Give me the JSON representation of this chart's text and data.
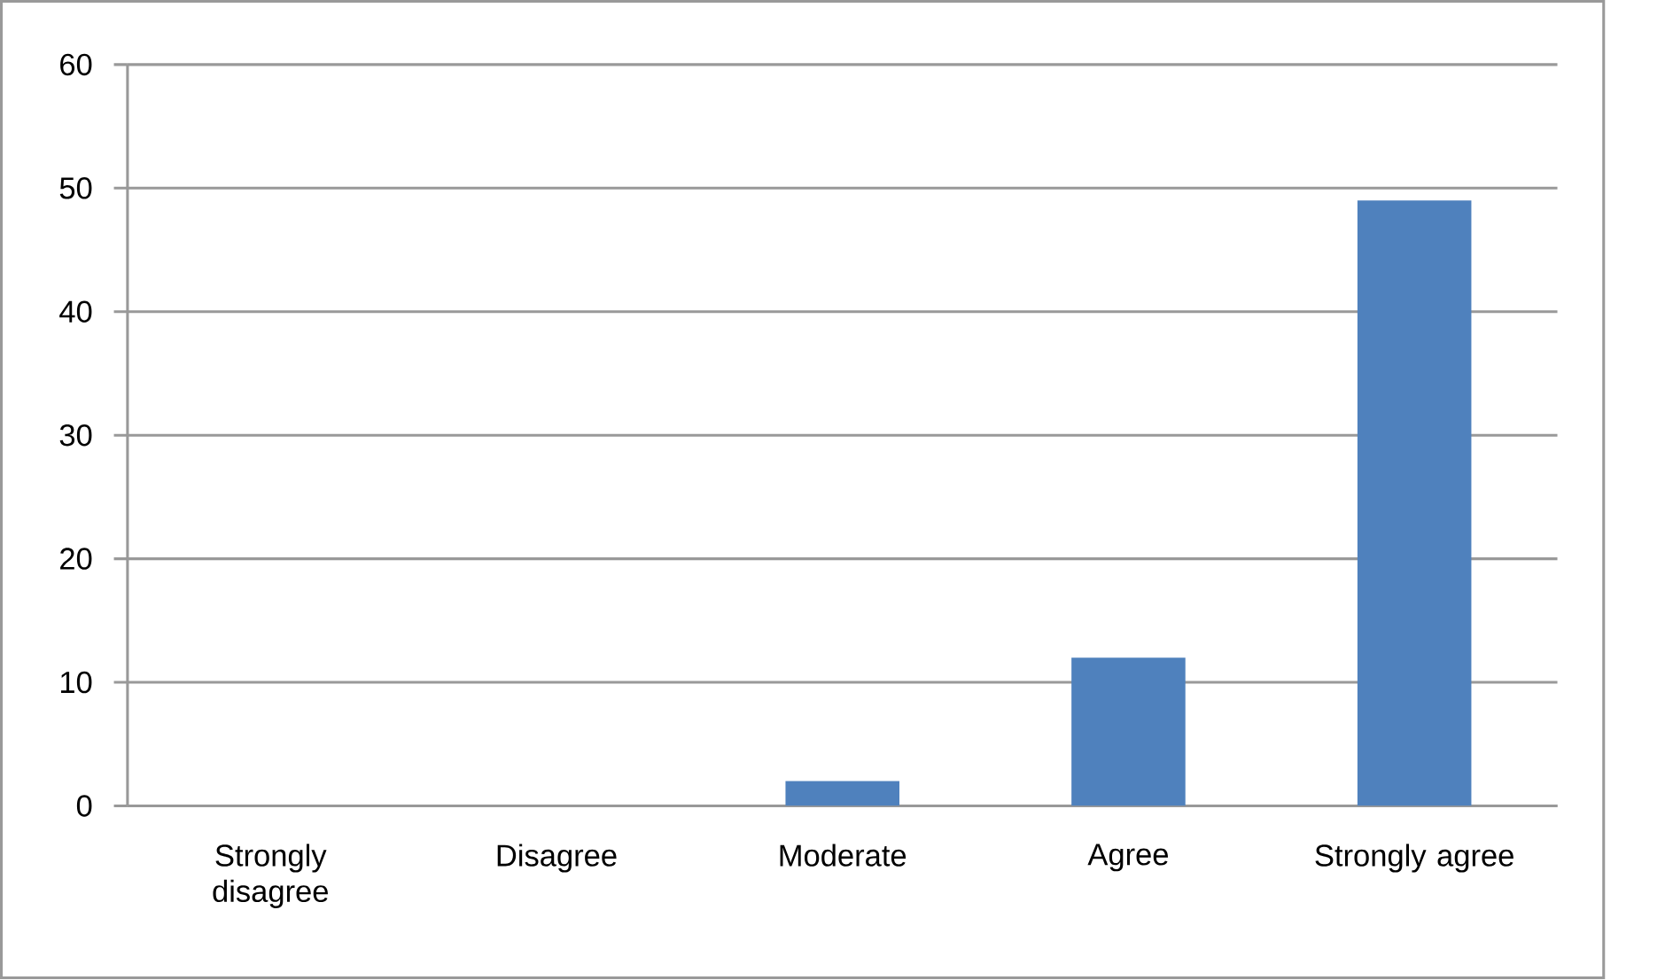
{
  "chart_data": {
    "type": "bar",
    "categories": [
      "Strongly disagree",
      "Disagree",
      "Moderate",
      "Agree",
      "Strongly agree"
    ],
    "values": [
      0,
      0,
      2,
      12,
      49
    ],
    "color": "#4f81bd",
    "ylim": [
      0,
      60
    ],
    "yticks": [
      0,
      10,
      20,
      30,
      40,
      50,
      60
    ],
    "grid": "y"
  }
}
